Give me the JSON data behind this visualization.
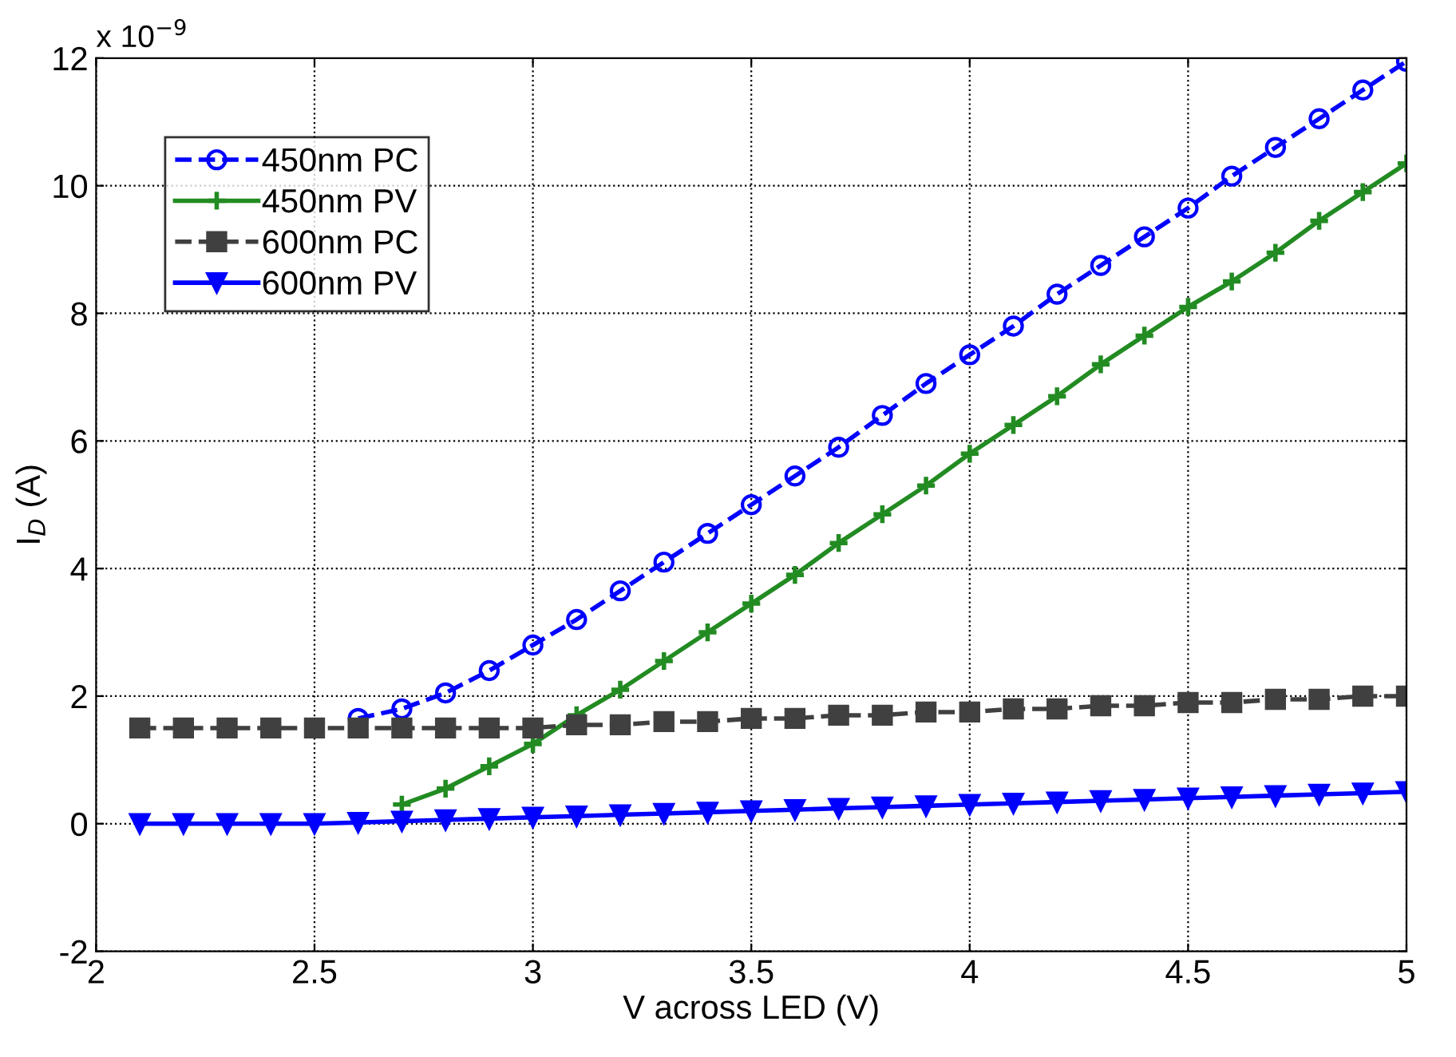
{
  "chart_data": {
    "type": "line",
    "xlabel": "V across LED (V)",
    "ylabel": "I$_{D}$ (A)",
    "annotations": [
      "x 10$^{−9}$"
    ],
    "xlim": [
      2,
      5
    ],
    "xticks": [
      2,
      2.5,
      3,
      3.5,
      4,
      4.5,
      5
    ],
    "ylim": [
      -2,
      12
    ],
    "yticks": [
      -2,
      0,
      2,
      4,
      6,
      8,
      10,
      12
    ],
    "grid": true,
    "legend": "top left",
    "series": [
      {
        "name": "450nm PC",
        "color": "#0000ff",
        "marker": "circle",
        "line_style": "dashed",
        "x": [
          2.6,
          2.7,
          2.8,
          2.9,
          3.0,
          3.1,
          3.2,
          3.3,
          3.4,
          3.5,
          3.6,
          3.7,
          3.8,
          3.9,
          4.0,
          4.1,
          4.2,
          4.3,
          4.4,
          4.5,
          4.6,
          4.7,
          4.8,
          4.9,
          5.0
        ],
        "values": [
          1.65,
          1.8,
          2.05,
          2.4,
          2.8,
          3.2,
          3.65,
          4.1,
          4.55,
          5.0,
          5.45,
          5.9,
          6.4,
          6.9,
          7.35,
          7.8,
          8.3,
          8.75,
          9.2,
          9.65,
          10.15,
          10.6,
          11.05,
          11.5,
          11.95
        ]
      },
      {
        "name": "450nm PV",
        "color": "#228b22",
        "marker": "cross",
        "line_style": "solid",
        "x": [
          2.7,
          2.8,
          2.9,
          3.0,
          3.1,
          3.2,
          3.3,
          3.4,
          3.5,
          3.6,
          3.7,
          3.8,
          3.9,
          4.0,
          4.1,
          4.2,
          4.3,
          4.4,
          4.5,
          4.6,
          4.7,
          4.8,
          4.9,
          5.0
        ],
        "values": [
          0.3,
          0.55,
          0.9,
          1.25,
          1.7,
          2.1,
          2.55,
          3.0,
          3.45,
          3.9,
          4.4,
          4.85,
          5.3,
          5.8,
          6.25,
          6.7,
          7.2,
          7.65,
          8.1,
          8.5,
          8.95,
          9.45,
          9.9,
          10.35
        ]
      },
      {
        "name": "600nm PC",
        "color": "#404040",
        "marker": "square",
        "line_style": "dashed",
        "x": [
          2.1,
          2.2,
          2.3,
          2.4,
          2.5,
          2.6,
          2.7,
          2.8,
          2.9,
          3.0,
          3.1,
          3.2,
          3.3,
          3.4,
          3.5,
          3.6,
          3.7,
          3.8,
          3.9,
          4.0,
          4.1,
          4.2,
          4.3,
          4.4,
          4.5,
          4.6,
          4.7,
          4.8,
          4.9,
          5.0
        ],
        "values": [
          1.5,
          1.5,
          1.5,
          1.5,
          1.5,
          1.5,
          1.5,
          1.5,
          1.5,
          1.5,
          1.55,
          1.55,
          1.6,
          1.6,
          1.65,
          1.65,
          1.7,
          1.7,
          1.75,
          1.75,
          1.8,
          1.8,
          1.85,
          1.85,
          1.9,
          1.9,
          1.95,
          1.95,
          2.0,
          2.0
        ]
      },
      {
        "name": "600nm PV",
        "color": "#0000ff",
        "marker": "triangle",
        "line_style": "solid",
        "x": [
          2.1,
          2.2,
          2.3,
          2.4,
          2.5,
          2.6,
          2.7,
          2.8,
          2.9,
          3.0,
          3.1,
          3.2,
          3.3,
          3.4,
          3.5,
          3.6,
          3.7,
          3.8,
          3.9,
          4.0,
          4.1,
          4.2,
          4.3,
          4.4,
          4.5,
          4.6,
          4.7,
          4.8,
          4.9,
          5.0
        ],
        "values": [
          0,
          0,
          0,
          0,
          0,
          0.02,
          0.04,
          0.06,
          0.08,
          0.1,
          0.12,
          0.14,
          0.16,
          0.18,
          0.2,
          0.22,
          0.24,
          0.26,
          0.28,
          0.3,
          0.32,
          0.34,
          0.36,
          0.38,
          0.4,
          0.42,
          0.44,
          0.46,
          0.48,
          0.5
        ]
      }
    ]
  }
}
